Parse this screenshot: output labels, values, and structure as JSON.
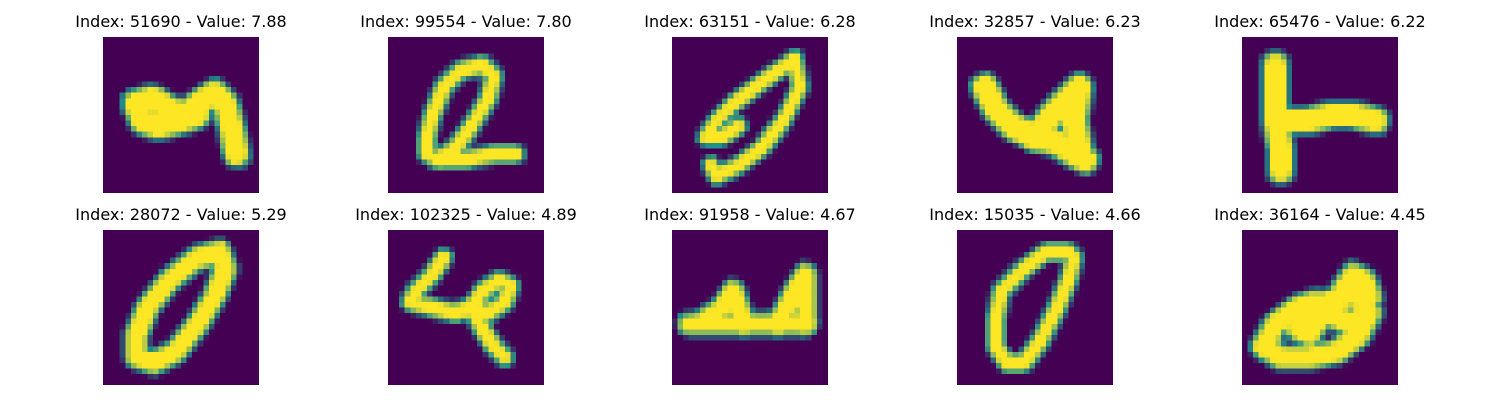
{
  "colormap": {
    "name": "viridis",
    "background": "#440154",
    "mid": "#21918c",
    "high": "#fde725"
  },
  "panels": [
    {
      "title": "Index: 51690 - Value: 7.88",
      "glyph": "crooked-4"
    },
    {
      "title": "Index: 99554 - Value: 7.80",
      "glyph": "tilted-Q"
    },
    {
      "title": "Index: 63151 - Value: 6.28",
      "glyph": "slanted-0"
    },
    {
      "title": "Index: 32857 - Value: 6.23",
      "glyph": "blob-u"
    },
    {
      "title": "Index: 65476 - Value: 6.22",
      "glyph": "L"
    },
    {
      "title": "Index: 28072 - Value: 5.29",
      "glyph": "oval-0"
    },
    {
      "title": "Index: 102325 - Value: 4.89",
      "glyph": "loopy-4"
    },
    {
      "title": "Index: 91958 - Value: 4.67",
      "glyph": "flat-4"
    },
    {
      "title": "Index: 15035 - Value: 4.66",
      "glyph": "narrow-0"
    },
    {
      "title": "Index: 36164 - Value: 4.45",
      "glyph": "ampersand-like"
    }
  ]
}
